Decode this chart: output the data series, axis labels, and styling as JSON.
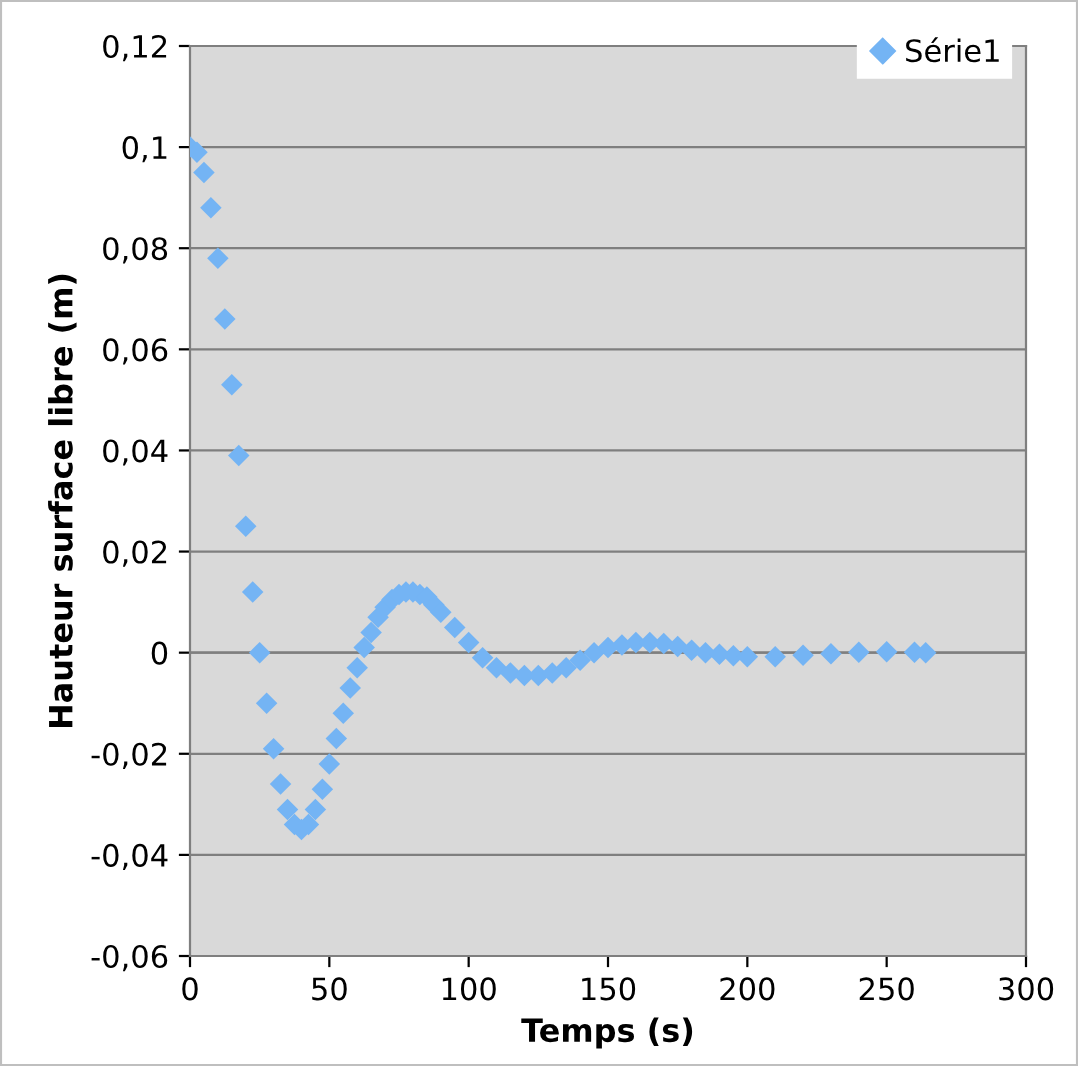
{
  "chart_data": {
    "type": "scatter",
    "xlabel": "Temps (s)",
    "ylabel": "Hauteur surface libre (m)",
    "x": [
      0,
      2.5,
      5,
      7.5,
      10,
      12.5,
      15,
      17.5,
      20,
      22.5,
      25,
      27.5,
      30,
      32.5,
      35,
      37.5,
      40,
      42.5,
      45,
      47.5,
      50,
      52.5,
      55,
      57.5,
      60,
      62.5,
      65,
      67.5,
      70,
      72.5,
      75,
      77.5,
      80,
      82.5,
      85,
      87.5,
      90,
      95,
      100,
      105,
      110,
      115,
      120,
      125,
      130,
      135,
      140,
      145,
      150,
      155,
      160,
      165,
      170,
      175,
      180,
      185,
      190,
      195,
      200,
      210,
      220,
      230,
      240,
      250,
      260,
      264
    ],
    "series": [
      {
        "name": "Série1",
        "color": "#74b4f4",
        "values": [
          0.1,
          0.099,
          0.095,
          0.088,
          0.078,
          0.066,
          0.053,
          0.039,
          0.025,
          0.012,
          0.0,
          -0.01,
          -0.019,
          -0.026,
          -0.031,
          -0.034,
          -0.035,
          -0.034,
          -0.031,
          -0.027,
          -0.022,
          -0.017,
          -0.012,
          -0.007,
          -0.003,
          0.001,
          0.004,
          0.007,
          0.009,
          0.0105,
          0.0115,
          0.012,
          0.012,
          0.0115,
          0.011,
          0.0095,
          0.008,
          0.005,
          0.002,
          -0.001,
          -0.003,
          -0.004,
          -0.0045,
          -0.0045,
          -0.004,
          -0.003,
          -0.0015,
          0.0,
          0.001,
          0.0015,
          0.002,
          0.002,
          0.0018,
          0.0012,
          0.0005,
          0.0,
          -0.0003,
          -0.0006,
          -0.0008,
          -0.0008,
          -0.0005,
          -0.0002,
          0.0001,
          0.0002,
          0.0001,
          0.0
        ]
      }
    ],
    "xlim": [
      0,
      300
    ],
    "xticks": [
      0,
      50,
      100,
      150,
      200,
      250,
      300
    ],
    "ylim": [
      -0.06,
      0.12
    ],
    "yticks": [
      {
        "value": -0.06,
        "label": "-0,06"
      },
      {
        "value": -0.04,
        "label": "-0,04"
      },
      {
        "value": -0.02,
        "label": "-0,02"
      },
      0,
      {
        "value": 0.02,
        "label": "0,02"
      },
      {
        "value": 0.04,
        "label": "0,04"
      },
      {
        "value": 0.06,
        "label": "0,06"
      },
      {
        "value": 0.08,
        "label": "0,08"
      },
      {
        "value": 0.1,
        "label": "0,1"
      },
      {
        "value": 0.12,
        "label": "0,12"
      }
    ],
    "grid": "y",
    "legend": "top right",
    "marker": "diamond"
  }
}
